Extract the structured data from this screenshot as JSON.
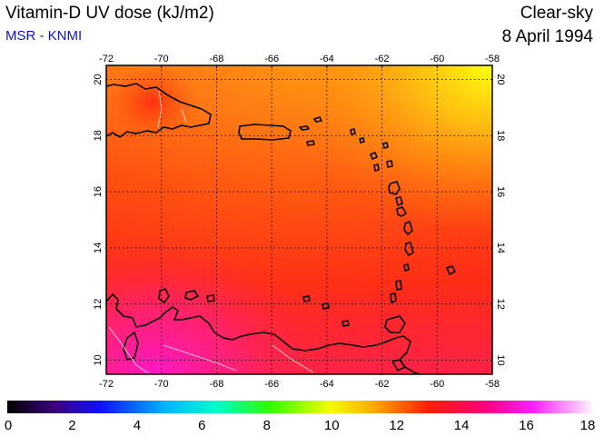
{
  "header": {
    "title": "Vitamin-D UV dose (kJ/m2)",
    "subtitle": "MSR - KNMI",
    "condition": "Clear-sky",
    "date": "8 April 1994"
  },
  "map": {
    "lon_range": [
      -72,
      -58
    ],
    "lat_range": [
      9.5,
      20.5
    ],
    "lon_ticks": [
      "-72",
      "-70",
      "-68",
      "-66",
      "-64",
      "-62",
      "-60",
      "-58"
    ],
    "lat_ticks": [
      "10",
      "12",
      "14",
      "16",
      "18",
      "20"
    ],
    "grid": "dotted"
  },
  "colorbar": {
    "min": 0,
    "max": 18,
    "tick_labels": [
      "0",
      "2",
      "4",
      "6",
      "8",
      "10",
      "12",
      "14",
      "16",
      "18"
    ]
  },
  "colors": {
    "field_main": "#ff3a10",
    "field_high_north": "#ffee00",
    "field_high_south": "#ff1e90",
    "coastline": "#000000",
    "borders": "#ffffff",
    "subtitle": "#1010d0"
  }
}
